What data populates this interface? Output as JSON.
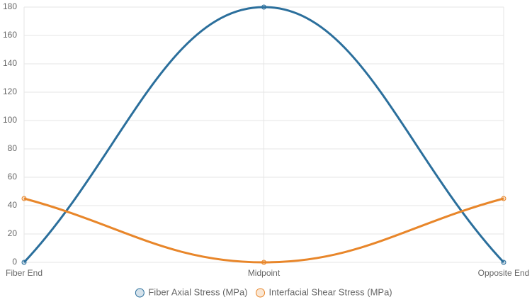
{
  "chart_data": {
    "type": "line",
    "categories": [
      "Fiber End",
      "Midpoint",
      "Opposite End"
    ],
    "series": [
      {
        "name": "Fiber Axial Stress (MPa)",
        "color": "#2b6f9c",
        "values": [
          0,
          180,
          0
        ]
      },
      {
        "name": "Interfacial Shear Stress (MPa)",
        "color": "#e8862a",
        "values": [
          45,
          0,
          45
        ]
      }
    ],
    "ylim": [
      0,
      180
    ],
    "yticks": [
      0,
      20,
      40,
      60,
      80,
      100,
      120,
      140,
      160,
      180
    ],
    "grid": true,
    "legend": "bottom"
  }
}
